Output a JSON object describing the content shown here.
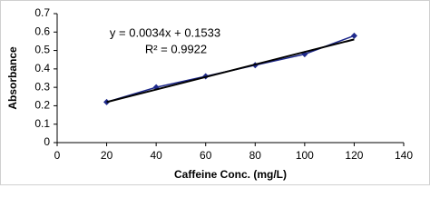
{
  "chart_data": {
    "type": "scatter",
    "x_label": "Caffeine Conc. (mg/L)",
    "y_label": "Absorbance",
    "annotations": [
      "y = 0.0034x + 0.1533",
      "R² = 0.9922"
    ],
    "xlim": [
      0,
      140
    ],
    "xticks": [
      0,
      20,
      40,
      60,
      80,
      100,
      120,
      140
    ],
    "ylim": [
      0,
      0.7
    ],
    "yticks": [
      0,
      0.1,
      0.2,
      0.3,
      0.4,
      0.5,
      0.6,
      0.7
    ],
    "series": [
      {
        "color": "#1f2a8c",
        "x": [
          20,
          40,
          60,
          80,
          100,
          120
        ],
        "values": [
          0.22,
          0.3,
          0.36,
          0.42,
          0.48,
          0.58
        ]
      }
    ],
    "trendline": {
      "color": "#000000",
      "x": [
        20,
        120
      ],
      "values": [
        0.22,
        0.56
      ]
    }
  }
}
